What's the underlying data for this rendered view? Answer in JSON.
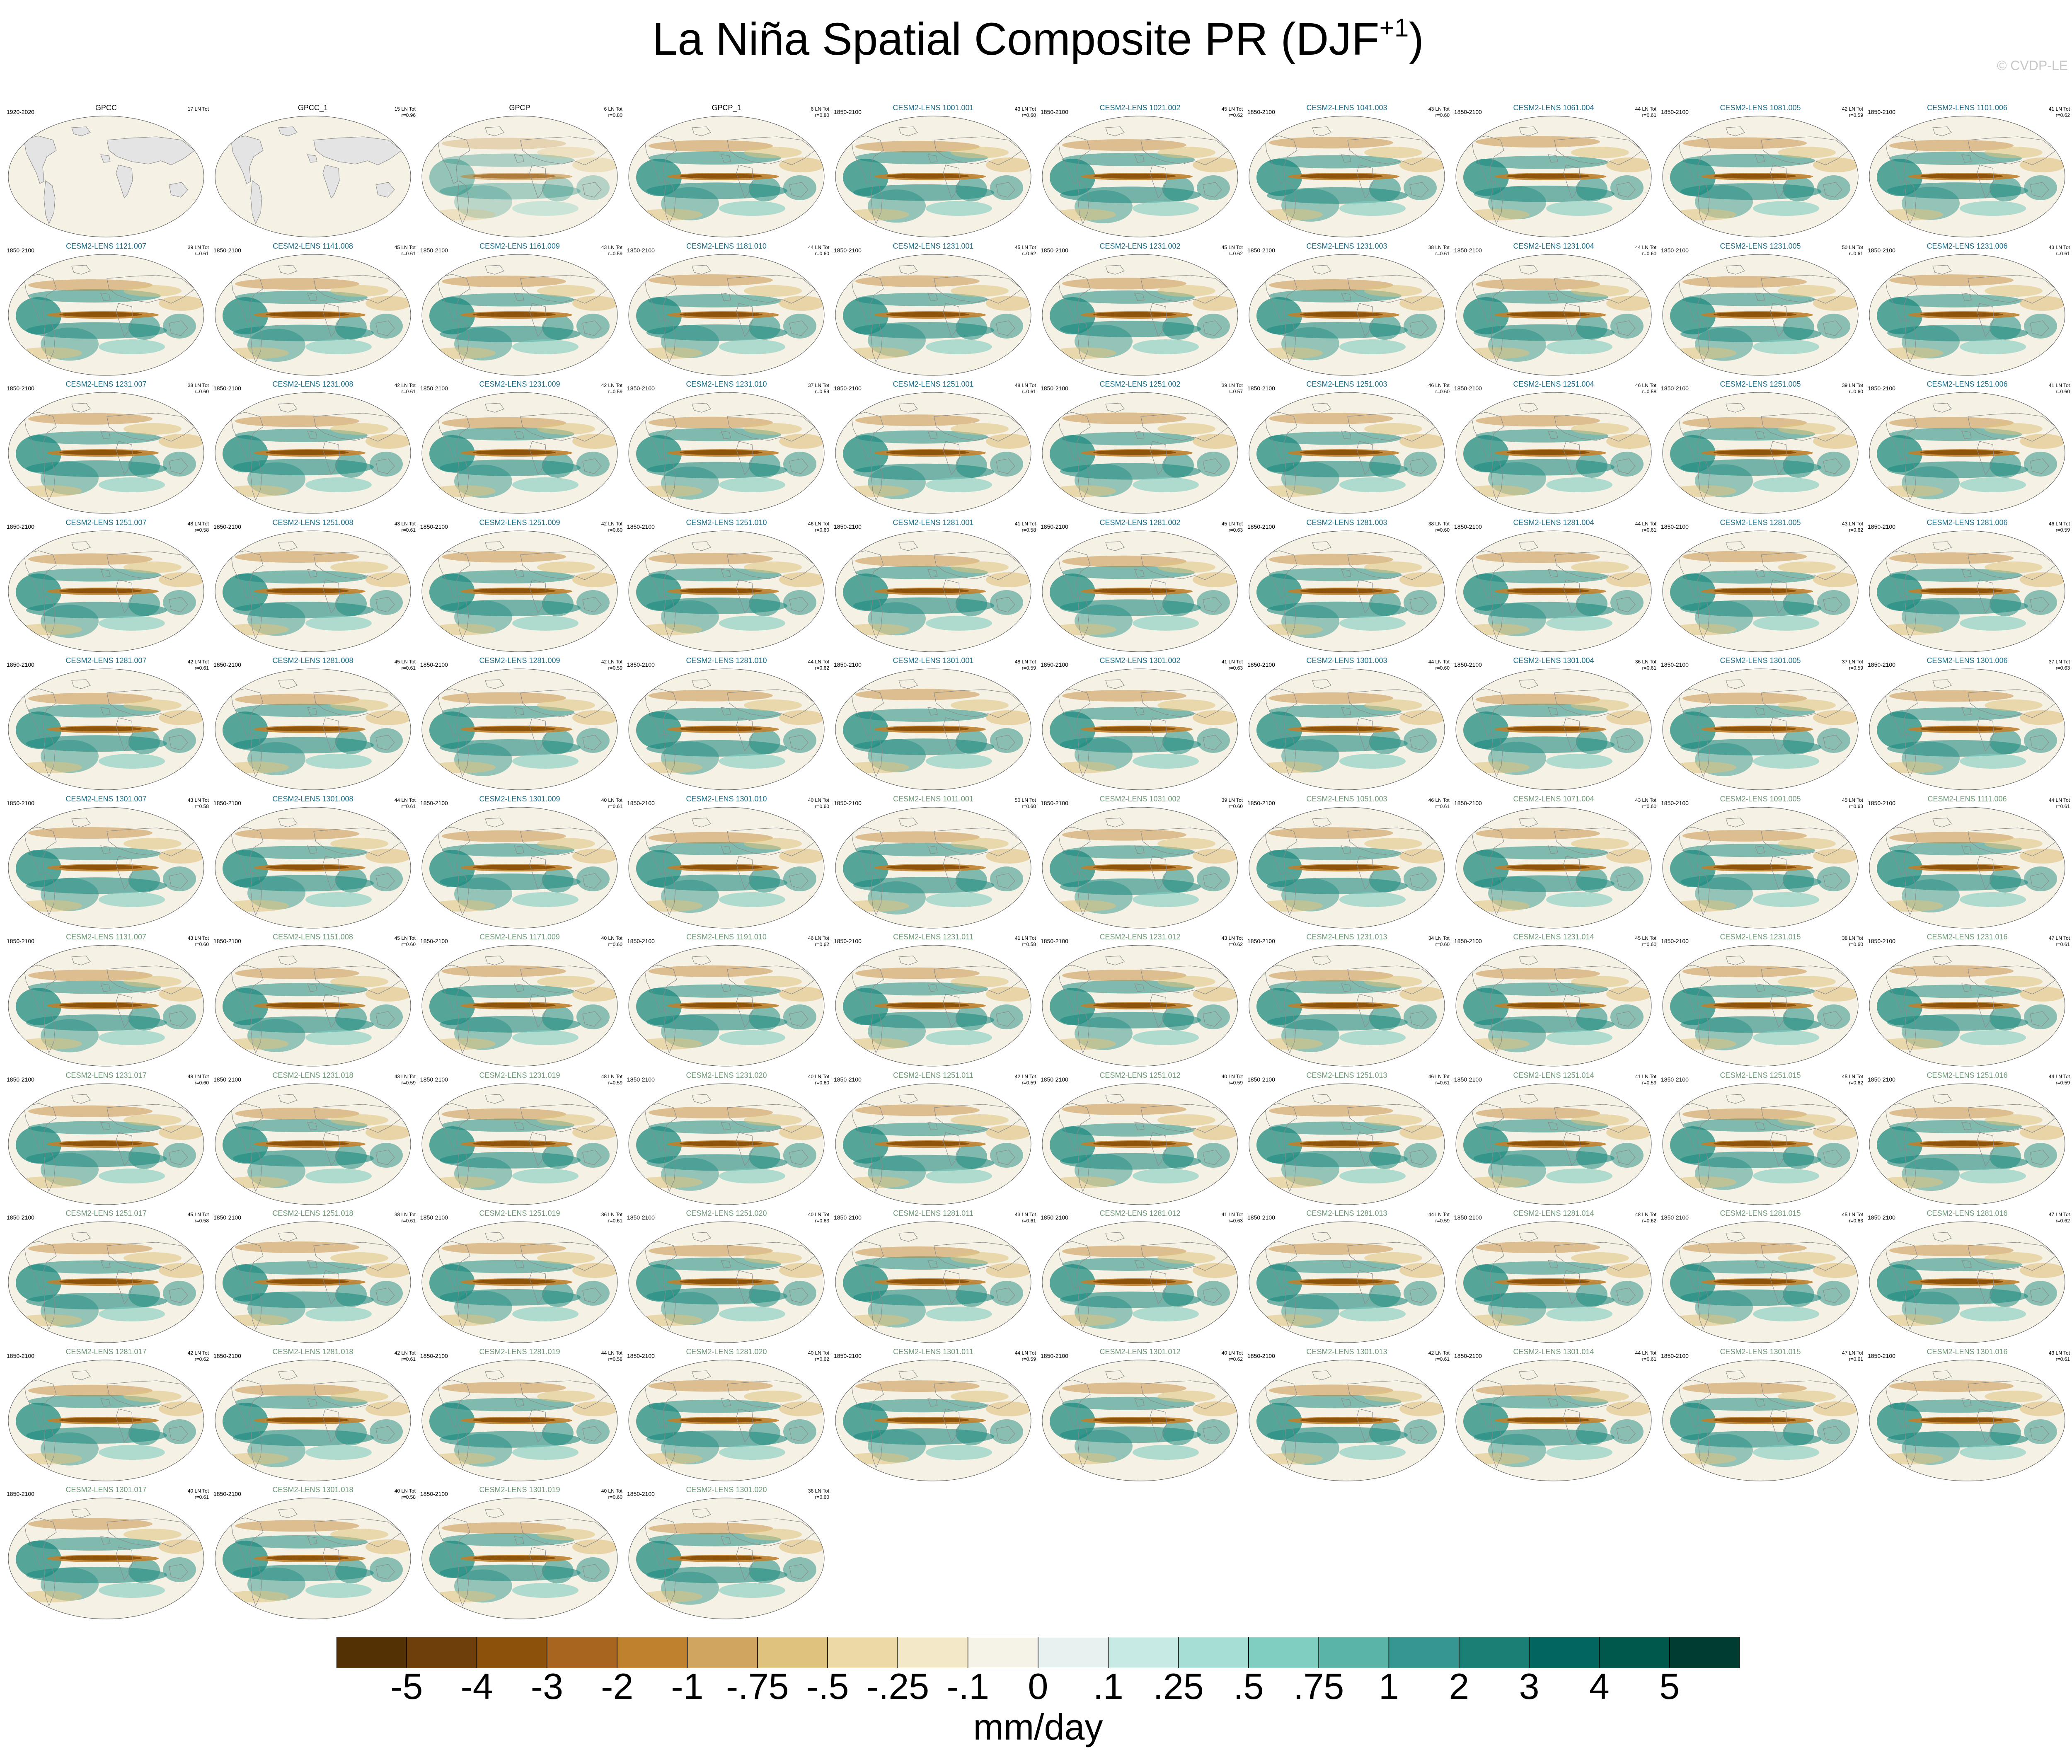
{
  "title": {
    "main": "La Niña Spatial Composite PR (DJF",
    "sup": "+1",
    "close": ")"
  },
  "watermark": "© CVDP-LE",
  "colorbar": {
    "colors": [
      "#543005",
      "#6e3f0b",
      "#8c510a",
      "#a86520",
      "#bf812d",
      "#d0a55f",
      "#dfc27d",
      "#ecd9a6",
      "#f3e8c7",
      "#f5f2e8",
      "#e6f1f0",
      "#c7eae5",
      "#a6ddd5",
      "#80cdc1",
      "#5ab4a8",
      "#35978f",
      "#1a7f75",
      "#01665e",
      "#00574c",
      "#003c30"
    ],
    "tick_labels": [
      "-5",
      "-4",
      "-3",
      "-2",
      "-1",
      "-.75",
      "-.5",
      "-.25",
      "-.1",
      "0",
      ".1",
      ".25",
      ".5",
      ".75",
      "1",
      "2",
      "3",
      "4",
      "5"
    ],
    "units": "mm/day"
  },
  "palette": {
    "obs_title": "#000000",
    "model_title_a": "#1a6f8c",
    "model_title_b": "#6f9a78",
    "ocean_base": "#f5f1e4",
    "land": "#ffffff",
    "obs_land": "#e4e4e4",
    "dry": "#8c510a",
    "wet": "#1f8b80"
  },
  "chart_data": {
    "type": "heatmap",
    "title": "La Niña Spatial Composite PR (DJF+1)",
    "variable": "PR",
    "season": "DJF+1",
    "units": "mm/day",
    "projection": "global map, Pacific-centered",
    "color_levels": [
      -5,
      -4,
      -3,
      -2,
      -1,
      -0.75,
      -0.5,
      -0.25,
      -0.1,
      0,
      0.1,
      0.25,
      0.5,
      0.75,
      1,
      2,
      3,
      4,
      5
    ],
    "panels": [
      {
        "name": "GPCC",
        "period": "1920-2020",
        "stat1": "17 LN Tot",
        "stat2": "",
        "group": "obs",
        "style": "obs_gray"
      },
      {
        "name": "GPCC_1",
        "period": "",
        "stat1": "15 LN Tot",
        "stat2": "r=0.96",
        "group": "obs",
        "style": "obs_gray"
      },
      {
        "name": "GPCP",
        "period": "",
        "stat1": "6 LN Tot",
        "stat2": "r=0.80",
        "group": "obs",
        "style": "obs_weak"
      },
      {
        "name": "GPCP_1",
        "period": "",
        "stat1": "6 LN Tot",
        "stat2": "r=0.80",
        "group": "obs",
        "style": "obs"
      },
      {
        "name": "CESM2-LENS 1001.001",
        "period": "1850-2100",
        "stat1": "43 LN Tot",
        "stat2": "r=0.60",
        "group": "a"
      },
      {
        "name": "CESM2-LENS 1021.002",
        "period": "1850-2100",
        "stat1": "45 LN Tot",
        "stat2": "r=0.62",
        "group": "a"
      },
      {
        "name": "CESM2-LENS 1041.003",
        "period": "1850-2100",
        "stat1": "43 LN Tot",
        "stat2": "r=0.60",
        "group": "a"
      },
      {
        "name": "CESM2-LENS 1061.004",
        "period": "1850-2100",
        "stat1": "44 LN Tot",
        "stat2": "r=0.61",
        "group": "a"
      },
      {
        "name": "CESM2-LENS 1081.005",
        "period": "1850-2100",
        "stat1": "42 LN Tot",
        "stat2": "r=0.59",
        "group": "a"
      },
      {
        "name": "CESM2-LENS 1101.006",
        "period": "1850-2100",
        "stat1": "41 LN Tot",
        "stat2": "r=0.62",
        "group": "a"
      },
      {
        "name": "CESM2-LENS 1121.007",
        "period": "1850-2100",
        "stat1": "39 LN Tot",
        "stat2": "r=0.61",
        "group": "a"
      },
      {
        "name": "CESM2-LENS 1141.008",
        "period": "1850-2100",
        "stat1": "45 LN Tot",
        "stat2": "r=0.61",
        "group": "a"
      },
      {
        "name": "CESM2-LENS 1161.009",
        "period": "1850-2100",
        "stat1": "43 LN Tot",
        "stat2": "r=0.59",
        "group": "a"
      },
      {
        "name": "CESM2-LENS 1181.010",
        "period": "1850-2100",
        "stat1": "44 LN Tot",
        "stat2": "r=0.60",
        "group": "a"
      },
      {
        "name": "CESM2-LENS 1231.001",
        "period": "1850-2100",
        "stat1": "45 LN Tot",
        "stat2": "r=0.62",
        "group": "a"
      },
      {
        "name": "CESM2-LENS 1231.002",
        "period": "1850-2100",
        "stat1": "45 LN Tot",
        "stat2": "r=0.62",
        "group": "a"
      },
      {
        "name": "CESM2-LENS 1231.003",
        "period": "1850-2100",
        "stat1": "38 LN Tot",
        "stat2": "r=0.61",
        "group": "a"
      },
      {
        "name": "CESM2-LENS 1231.004",
        "period": "1850-2100",
        "stat1": "44 LN Tot",
        "stat2": "r=0.60",
        "group": "a"
      },
      {
        "name": "CESM2-LENS 1231.005",
        "period": "1850-2100",
        "stat1": "50 LN Tot",
        "stat2": "r=0.61",
        "group": "a"
      },
      {
        "name": "CESM2-LENS 1231.006",
        "period": "1850-2100",
        "stat1": "43 LN Tot",
        "stat2": "r=0.61",
        "group": "a"
      },
      {
        "name": "CESM2-LENS 1231.007",
        "period": "1850-2100",
        "stat1": "38 LN Tot",
        "stat2": "r=0.60",
        "group": "a"
      },
      {
        "name": "CESM2-LENS 1231.008",
        "period": "1850-2100",
        "stat1": "42 LN Tot",
        "stat2": "r=0.61",
        "group": "a"
      },
      {
        "name": "CESM2-LENS 1231.009",
        "period": "1850-2100",
        "stat1": "42 LN Tot",
        "stat2": "r=0.59",
        "group": "a"
      },
      {
        "name": "CESM2-LENS 1231.010",
        "period": "1850-2100",
        "stat1": "37 LN Tot",
        "stat2": "r=0.59",
        "group": "a"
      },
      {
        "name": "CESM2-LENS 1251.001",
        "period": "1850-2100",
        "stat1": "48 LN Tot",
        "stat2": "r=0.61",
        "group": "a"
      },
      {
        "name": "CESM2-LENS 1251.002",
        "period": "1850-2100",
        "stat1": "39 LN Tot",
        "stat2": "r=0.57",
        "group": "a"
      },
      {
        "name": "CESM2-LENS 1251.003",
        "period": "1850-2100",
        "stat1": "46 LN Tot",
        "stat2": "r=0.60",
        "group": "a"
      },
      {
        "name": "CESM2-LENS 1251.004",
        "period": "1850-2100",
        "stat1": "46 LN Tot",
        "stat2": "r=0.58",
        "group": "a"
      },
      {
        "name": "CESM2-LENS 1251.005",
        "period": "1850-2100",
        "stat1": "39 LN Tot",
        "stat2": "r=0.60",
        "group": "a"
      },
      {
        "name": "CESM2-LENS 1251.006",
        "period": "1850-2100",
        "stat1": "41 LN Tot",
        "stat2": "r=0.60",
        "group": "a"
      },
      {
        "name": "CESM2-LENS 1251.007",
        "period": "1850-2100",
        "stat1": "48 LN Tot",
        "stat2": "r=0.58",
        "group": "a"
      },
      {
        "name": "CESM2-LENS 1251.008",
        "period": "1850-2100",
        "stat1": "43 LN Tot",
        "stat2": "r=0.61",
        "group": "a"
      },
      {
        "name": "CESM2-LENS 1251.009",
        "period": "1850-2100",
        "stat1": "42 LN Tot",
        "stat2": "r=0.60",
        "group": "a"
      },
      {
        "name": "CESM2-LENS 1251.010",
        "period": "1850-2100",
        "stat1": "46 LN Tot",
        "stat2": "r=0.60",
        "group": "a"
      },
      {
        "name": "CESM2-LENS 1281.001",
        "period": "1850-2100",
        "stat1": "41 LN Tot",
        "stat2": "r=0.58",
        "group": "a"
      },
      {
        "name": "CESM2-LENS 1281.002",
        "period": "1850-2100",
        "stat1": "45 LN Tot",
        "stat2": "r=0.63",
        "group": "a"
      },
      {
        "name": "CESM2-LENS 1281.003",
        "period": "1850-2100",
        "stat1": "38 LN Tot",
        "stat2": "r=0.60",
        "group": "a"
      },
      {
        "name": "CESM2-LENS 1281.004",
        "period": "1850-2100",
        "stat1": "44 LN Tot",
        "stat2": "r=0.61",
        "group": "a"
      },
      {
        "name": "CESM2-LENS 1281.005",
        "period": "1850-2100",
        "stat1": "43 LN Tot",
        "stat2": "r=0.62",
        "group": "a"
      },
      {
        "name": "CESM2-LENS 1281.006",
        "period": "1850-2100",
        "stat1": "46 LN Tot",
        "stat2": "r=0.59",
        "group": "a"
      },
      {
        "name": "CESM2-LENS 1281.007",
        "period": "1850-2100",
        "stat1": "42 LN Tot",
        "stat2": "r=0.61",
        "group": "a"
      },
      {
        "name": "CESM2-LENS 1281.008",
        "period": "1850-2100",
        "stat1": "45 LN Tot",
        "stat2": "r=0.61",
        "group": "a"
      },
      {
        "name": "CESM2-LENS 1281.009",
        "period": "1850-2100",
        "stat1": "42 LN Tot",
        "stat2": "r=0.59",
        "group": "a"
      },
      {
        "name": "CESM2-LENS 1281.010",
        "period": "1850-2100",
        "stat1": "44 LN Tot",
        "stat2": "r=0.62",
        "group": "a"
      },
      {
        "name": "CESM2-LENS 1301.001",
        "period": "1850-2100",
        "stat1": "48 LN Tot",
        "stat2": "r=0.59",
        "group": "a"
      },
      {
        "name": "CESM2-LENS 1301.002",
        "period": "1850-2100",
        "stat1": "41 LN Tot",
        "stat2": "r=0.63",
        "group": "a"
      },
      {
        "name": "CESM2-LENS 1301.003",
        "period": "1850-2100",
        "stat1": "44 LN Tot",
        "stat2": "r=0.60",
        "group": "a"
      },
      {
        "name": "CESM2-LENS 1301.004",
        "period": "1850-2100",
        "stat1": "36 LN Tot",
        "stat2": "r=0.61",
        "group": "a"
      },
      {
        "name": "CESM2-LENS 1301.005",
        "period": "1850-2100",
        "stat1": "37 LN Tot",
        "stat2": "r=0.59",
        "group": "a"
      },
      {
        "name": "CESM2-LENS 1301.006",
        "period": "1850-2100",
        "stat1": "37 LN Tot",
        "stat2": "r=0.63",
        "group": "a"
      },
      {
        "name": "CESM2-LENS 1301.007",
        "period": "1850-2100",
        "stat1": "43 LN Tot",
        "stat2": "r=0.58",
        "group": "a"
      },
      {
        "name": "CESM2-LENS 1301.008",
        "period": "1850-2100",
        "stat1": "44 LN Tot",
        "stat2": "r=0.61",
        "group": "a"
      },
      {
        "name": "CESM2-LENS 1301.009",
        "period": "1850-2100",
        "stat1": "40 LN Tot",
        "stat2": "r=0.61",
        "group": "a"
      },
      {
        "name": "CESM2-LENS 1301.010",
        "period": "1850-2100",
        "stat1": "40 LN Tot",
        "stat2": "r=0.60",
        "group": "a"
      },
      {
        "name": "CESM2-LENS 1011.001",
        "period": "1850-2100",
        "stat1": "50 LN Tot",
        "stat2": "r=0.60",
        "group": "b"
      },
      {
        "name": "CESM2-LENS 1031.002",
        "period": "1850-2100",
        "stat1": "39 LN Tot",
        "stat2": "r=0.60",
        "group": "b"
      },
      {
        "name": "CESM2-LENS 1051.003",
        "period": "1850-2100",
        "stat1": "46 LN Tot",
        "stat2": "r=0.61",
        "group": "b"
      },
      {
        "name": "CESM2-LENS 1071.004",
        "period": "1850-2100",
        "stat1": "43 LN Tot",
        "stat2": "r=0.60",
        "group": "b"
      },
      {
        "name": "CESM2-LENS 1091.005",
        "period": "1850-2100",
        "stat1": "45 LN Tot",
        "stat2": "r=0.63",
        "group": "b"
      },
      {
        "name": "CESM2-LENS 1111.006",
        "period": "1850-2100",
        "stat1": "44 LN Tot",
        "stat2": "r=0.61",
        "group": "b"
      },
      {
        "name": "CESM2-LENS 1131.007",
        "period": "1850-2100",
        "stat1": "43 LN Tot",
        "stat2": "r=0.60",
        "group": "b"
      },
      {
        "name": "CESM2-LENS 1151.008",
        "period": "1850-2100",
        "stat1": "45 LN Tot",
        "stat2": "r=0.60",
        "group": "b"
      },
      {
        "name": "CESM2-LENS 1171.009",
        "period": "1850-2100",
        "stat1": "40 LN Tot",
        "stat2": "r=0.60",
        "group": "b"
      },
      {
        "name": "CESM2-LENS 1191.010",
        "period": "1850-2100",
        "stat1": "46 LN Tot",
        "stat2": "r=0.62",
        "group": "b"
      },
      {
        "name": "CESM2-LENS 1231.011",
        "period": "1850-2100",
        "stat1": "41 LN Tot",
        "stat2": "r=0.58",
        "group": "b"
      },
      {
        "name": "CESM2-LENS 1231.012",
        "period": "1850-2100",
        "stat1": "43 LN Tot",
        "stat2": "r=0.62",
        "group": "b"
      },
      {
        "name": "CESM2-LENS 1231.013",
        "period": "1850-2100",
        "stat1": "34 LN Tot",
        "stat2": "r=0.60",
        "group": "b"
      },
      {
        "name": "CESM2-LENS 1231.014",
        "period": "1850-2100",
        "stat1": "45 LN Tot",
        "stat2": "r=0.60",
        "group": "b"
      },
      {
        "name": "CESM2-LENS 1231.015",
        "period": "1850-2100",
        "stat1": "38 LN Tot",
        "stat2": "r=0.60",
        "group": "b"
      },
      {
        "name": "CESM2-LENS 1231.016",
        "period": "1850-2100",
        "stat1": "47 LN Tot",
        "stat2": "r=0.61",
        "group": "b"
      },
      {
        "name": "CESM2-LENS 1231.017",
        "period": "1850-2100",
        "stat1": "48 LN Tot",
        "stat2": "r=0.60",
        "group": "b"
      },
      {
        "name": "CESM2-LENS 1231.018",
        "period": "1850-2100",
        "stat1": "43 LN Tot",
        "stat2": "r=0.59",
        "group": "b"
      },
      {
        "name": "CESM2-LENS 1231.019",
        "period": "1850-2100",
        "stat1": "48 LN Tot",
        "stat2": "r=0.59",
        "group": "b"
      },
      {
        "name": "CESM2-LENS 1231.020",
        "period": "1850-2100",
        "stat1": "40 LN Tot",
        "stat2": "r=0.60",
        "group": "b"
      },
      {
        "name": "CESM2-LENS 1251.011",
        "period": "1850-2100",
        "stat1": "42 LN Tot",
        "stat2": "r=0.59",
        "group": "b"
      },
      {
        "name": "CESM2-LENS 1251.012",
        "period": "1850-2100",
        "stat1": "40 LN Tot",
        "stat2": "r=0.59",
        "group": "b"
      },
      {
        "name": "CESM2-LENS 1251.013",
        "period": "1850-2100",
        "stat1": "46 LN Tot",
        "stat2": "r=0.61",
        "group": "b"
      },
      {
        "name": "CESM2-LENS 1251.014",
        "period": "1850-2100",
        "stat1": "41 LN Tot",
        "stat2": "r=0.59",
        "group": "b"
      },
      {
        "name": "CESM2-LENS 1251.015",
        "period": "1850-2100",
        "stat1": "45 LN Tot",
        "stat2": "r=0.62",
        "group": "b"
      },
      {
        "name": "CESM2-LENS 1251.016",
        "period": "1850-2100",
        "stat1": "44 LN Tot",
        "stat2": "r=0.59",
        "group": "b"
      },
      {
        "name": "CESM2-LENS 1251.017",
        "period": "1850-2100",
        "stat1": "45 LN Tot",
        "stat2": "r=0.58",
        "group": "b"
      },
      {
        "name": "CESM2-LENS 1251.018",
        "period": "1850-2100",
        "stat1": "38 LN Tot",
        "stat2": "r=0.61",
        "group": "b"
      },
      {
        "name": "CESM2-LENS 1251.019",
        "period": "1850-2100",
        "stat1": "36 LN Tot",
        "stat2": "r=0.61",
        "group": "b"
      },
      {
        "name": "CESM2-LENS 1251.020",
        "period": "1850-2100",
        "stat1": "40 LN Tot",
        "stat2": "r=0.63",
        "group": "b"
      },
      {
        "name": "CESM2-LENS 1281.011",
        "period": "1850-2100",
        "stat1": "43 LN Tot",
        "stat2": "r=0.61",
        "group": "b"
      },
      {
        "name": "CESM2-LENS 1281.012",
        "period": "1850-2100",
        "stat1": "41 LN Tot",
        "stat2": "r=0.63",
        "group": "b"
      },
      {
        "name": "CESM2-LENS 1281.013",
        "period": "1850-2100",
        "stat1": "44 LN Tot",
        "stat2": "r=0.59",
        "group": "b"
      },
      {
        "name": "CESM2-LENS 1281.014",
        "period": "1850-2100",
        "stat1": "48 LN Tot",
        "stat2": "r=0.62",
        "group": "b"
      },
      {
        "name": "CESM2-LENS 1281.015",
        "period": "1850-2100",
        "stat1": "45 LN Tot",
        "stat2": "r=0.63",
        "group": "b"
      },
      {
        "name": "CESM2-LENS 1281.016",
        "period": "1850-2100",
        "stat1": "47 LN Tot",
        "stat2": "r=0.62",
        "group": "b"
      },
      {
        "name": "CESM2-LENS 1281.017",
        "period": "1850-2100",
        "stat1": "42 LN Tot",
        "stat2": "r=0.62",
        "group": "b"
      },
      {
        "name": "CESM2-LENS 1281.018",
        "period": "1850-2100",
        "stat1": "42 LN Tot",
        "stat2": "r=0.61",
        "group": "b"
      },
      {
        "name": "CESM2-LENS 1281.019",
        "period": "1850-2100",
        "stat1": "44 LN Tot",
        "stat2": "r=0.58",
        "group": "b"
      },
      {
        "name": "CESM2-LENS 1281.020",
        "period": "1850-2100",
        "stat1": "40 LN Tot",
        "stat2": "r=0.62",
        "group": "b"
      },
      {
        "name": "CESM2-LENS 1301.011",
        "period": "1850-2100",
        "stat1": "44 LN Tot",
        "stat2": "r=0.59",
        "group": "b"
      },
      {
        "name": "CESM2-LENS 1301.012",
        "period": "1850-2100",
        "stat1": "40 LN Tot",
        "stat2": "r=0.62",
        "group": "b"
      },
      {
        "name": "CESM2-LENS 1301.013",
        "period": "1850-2100",
        "stat1": "42 LN Tot",
        "stat2": "r=0.61",
        "group": "b"
      },
      {
        "name": "CESM2-LENS 1301.014",
        "period": "1850-2100",
        "stat1": "44 LN Tot",
        "stat2": "r=0.61",
        "group": "b"
      },
      {
        "name": "CESM2-LENS 1301.015",
        "period": "1850-2100",
        "stat1": "47 LN Tot",
        "stat2": "r=0.61",
        "group": "b"
      },
      {
        "name": "CESM2-LENS 1301.016",
        "period": "1850-2100",
        "stat1": "43 LN Tot",
        "stat2": "r=0.61",
        "group": "b"
      },
      {
        "name": "CESM2-LENS 1301.017",
        "period": "1850-2100",
        "stat1": "40 LN Tot",
        "stat2": "r=0.61",
        "group": "b"
      },
      {
        "name": "CESM2-LENS 1301.018",
        "period": "1850-2100",
        "stat1": "40 LN Tot",
        "stat2": "r=0.58",
        "group": "b"
      },
      {
        "name": "CESM2-LENS 1301.019",
        "period": "1850-2100",
        "stat1": "40 LN Tot",
        "stat2": "r=0.60",
        "group": "b"
      },
      {
        "name": "CESM2-LENS 1301.020",
        "period": "1850-2100",
        "stat1": "36 LN Tot",
        "stat2": "r=0.60",
        "group": "b"
      }
    ]
  }
}
